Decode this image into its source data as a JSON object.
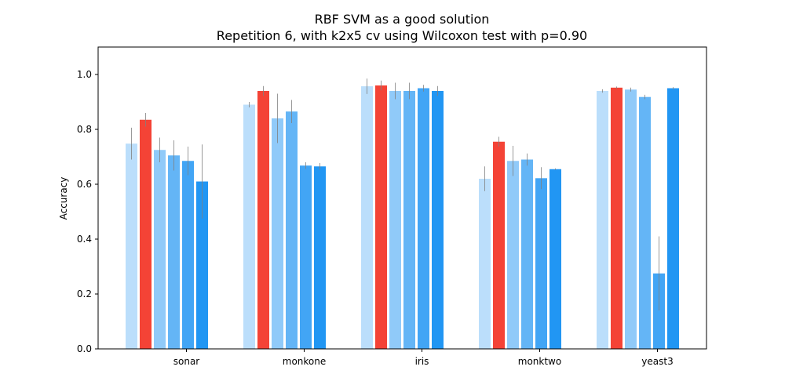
{
  "chart_data": {
    "type": "bar",
    "title_line1": "RBF SVM as a good solution",
    "title_line2": "Repetition 6, with k2x5 cv using Wilcoxon test with p=0.90",
    "xlabel": "",
    "ylabel": "Accuracy",
    "ylim": [
      0,
      1.1
    ],
    "yticks": [
      "0.0",
      "0.2",
      "0.4",
      "0.6",
      "0.8",
      "1.0"
    ],
    "grid": false,
    "legend": "none",
    "categories": [
      "sonar",
      "monkone",
      "iris",
      "monktwo",
      "yeast3"
    ],
    "bar_colors": [
      "#bbdefb",
      "#f44336",
      "#90caf9",
      "#64b5f6",
      "#42a5f5",
      "#2196f3"
    ],
    "error_color": "#808080",
    "series": [
      {
        "values": [
          0.748,
          0.89,
          0.957,
          0.62,
          0.94
        ],
        "errors": [
          0.058,
          0.01,
          0.028,
          0.045,
          0.006
        ]
      },
      {
        "values": [
          0.835,
          0.94,
          0.96,
          0.755,
          0.952
        ],
        "errors": [
          0.025,
          0.018,
          0.018,
          0.018,
          0.004
        ]
      },
      {
        "values": [
          0.725,
          0.84,
          0.94,
          0.685,
          0.945
        ],
        "errors": [
          0.045,
          0.09,
          0.03,
          0.055,
          0.007
        ]
      },
      {
        "values": [
          0.705,
          0.865,
          0.94,
          0.69,
          0.918
        ],
        "errors": [
          0.055,
          0.042,
          0.03,
          0.022,
          0.008
        ]
      },
      {
        "values": [
          0.685,
          0.668,
          0.95,
          0.622,
          0.275
        ],
        "errors": [
          0.052,
          0.012,
          0.012,
          0.04,
          0.135
        ]
      },
      {
        "values": [
          0.61,
          0.665,
          0.94,
          0.655,
          0.95
        ],
        "errors": [
          0.135,
          0.012,
          0.018,
          0.003,
          0.004
        ]
      }
    ]
  }
}
